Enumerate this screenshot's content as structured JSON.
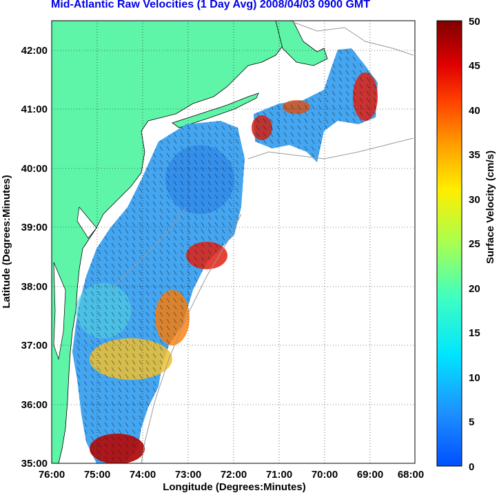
{
  "title": "Mid-Atlantic Raw Velocities (1 Day Avg) 2008/04/03 0900 GMT",
  "map": {
    "xlabel": "Longitude (Degrees:Minutes)",
    "ylabel": "Latitude (Degrees:Minutes)",
    "x_ticks": [
      "76:00",
      "75:00",
      "74:00",
      "73:00",
      "72:00",
      "71:00",
      "70:00",
      "69:00",
      "68:00"
    ],
    "y_ticks": [
      "42:00",
      "41:00",
      "40:00",
      "39:00",
      "38:00",
      "37:00",
      "36:00",
      "35:00"
    ],
    "lon_range": [
      -76,
      -68
    ],
    "lat_range": [
      35,
      42.5
    ],
    "land_color": "#5ff5a8",
    "grid": "dotted"
  },
  "colorbar": {
    "label": "Surface Velocity (cm/s)",
    "ticks": [
      "50",
      "45",
      "40",
      "35",
      "30",
      "25",
      "20",
      "15",
      "10",
      "5",
      "0"
    ],
    "range": [
      0,
      50
    ],
    "colormap": "jet"
  }
}
